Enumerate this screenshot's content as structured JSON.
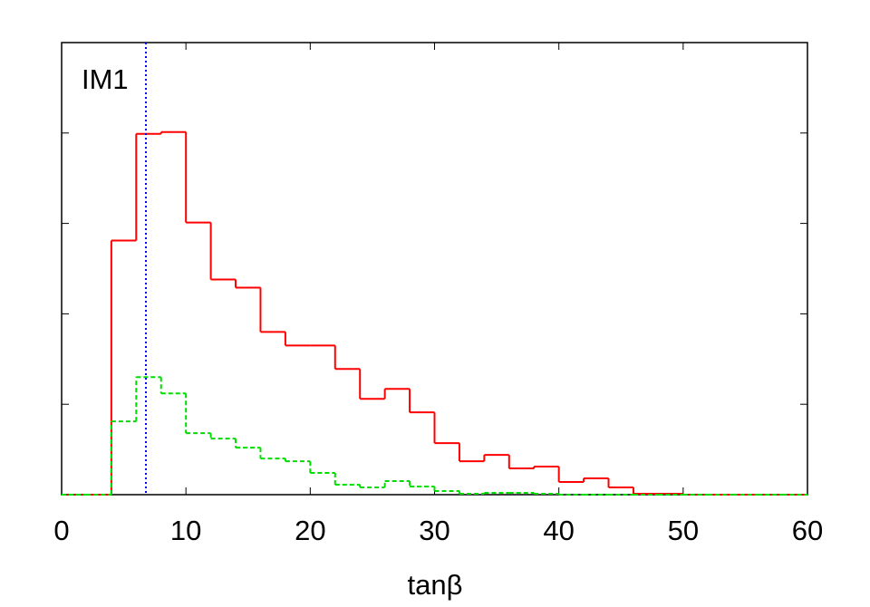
{
  "chart_data": {
    "type": "histogram",
    "annotation": "IM1",
    "xlabel": "tanβ",
    "bins": [
      0,
      2,
      4,
      6,
      8,
      10,
      12,
      14,
      16,
      18,
      20,
      22,
      24,
      26,
      28,
      30,
      32,
      34,
      36,
      38,
      40,
      42,
      44,
      46,
      48,
      50,
      52,
      54,
      56,
      58,
      60
    ],
    "series": [
      {
        "color": "#ff0000",
        "dash": "solid",
        "values": [
          0,
          0,
          2.81,
          3.99,
          4.01,
          3.01,
          2.38,
          2.29,
          1.8,
          1.65,
          1.65,
          1.39,
          1.06,
          1.17,
          0.91,
          0.57,
          0.37,
          0.44,
          0.29,
          0.31,
          0.14,
          0.18,
          0.08,
          0.01,
          0.01,
          0,
          0,
          0,
          0,
          0
        ]
      },
      {
        "color": "#00dd00",
        "dash": "dashed",
        "values": [
          0,
          0,
          0.81,
          1.3,
          1.12,
          0.68,
          0.62,
          0.52,
          0.4,
          0.37,
          0.24,
          0.11,
          0.08,
          0.15,
          0.09,
          0.04,
          0.01,
          0.02,
          0.02,
          0.01,
          0,
          0,
          0,
          0,
          0,
          0,
          0,
          0,
          0,
          0
        ]
      }
    ],
    "vline": {
      "x": 6.78,
      "color": "#0000ff"
    },
    "xlim": [
      0,
      60
    ],
    "xticks": [
      0,
      10,
      20,
      30,
      40,
      50,
      60
    ],
    "ylim": [
      0,
      5
    ],
    "yticks": [
      1,
      2,
      3,
      4
    ],
    "ytick_labels": false
  }
}
